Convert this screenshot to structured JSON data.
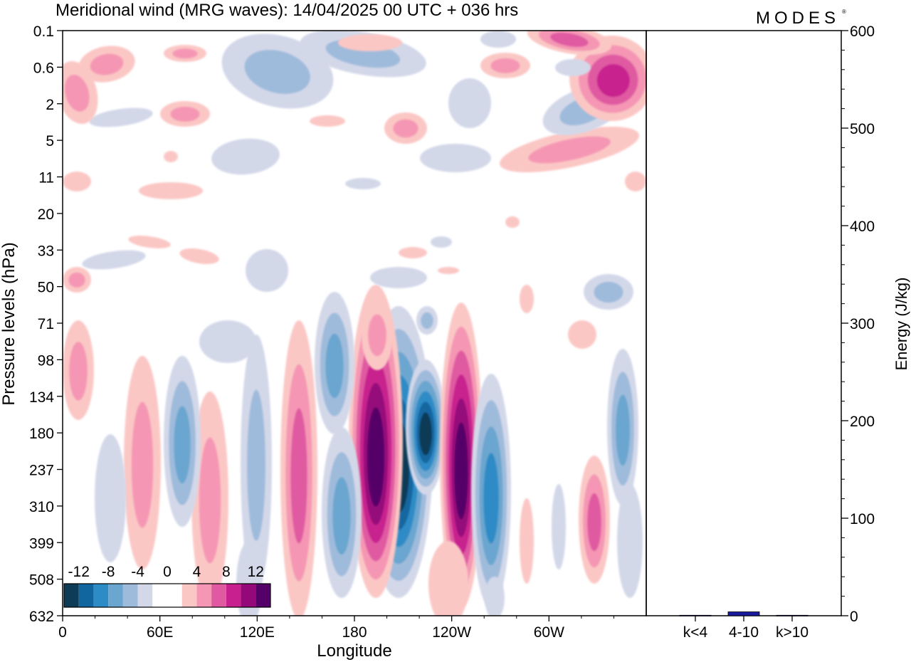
{
  "chart_data": {
    "type": "heatmap",
    "title": "Meridional wind (MRG waves):  14/04/2025  00 UTC  + 036 hrs",
    "brand": "MODES",
    "xlabel": "Longitude",
    "ylabel": "Pressure levels (hPa)",
    "x_ticks": [
      "0",
      "60E",
      "120E",
      "180",
      "120W",
      "60W"
    ],
    "y_ticks": [
      "0.1",
      "0.6",
      "2",
      "5",
      "11",
      "20",
      "33",
      "50",
      "71",
      "98",
      "134",
      "180",
      "237",
      "310",
      "399",
      "508",
      "632"
    ],
    "colorbar": {
      "labels": [
        "-12",
        "-8",
        "-4",
        "0",
        "4",
        "8",
        "12"
      ],
      "colors": [
        "#0e3b56",
        "#1266a0",
        "#2d8bc6",
        "#6aa6cf",
        "#9fbbdb",
        "#d3d8e9",
        "#ffffff",
        "#ffffff",
        "#fbc7c5",
        "#f597b4",
        "#e05aa2",
        "#c8208e",
        "#94087a",
        "#550068"
      ]
    },
    "energy_panel": {
      "ylabel": "Energy (J/kg)",
      "y_ticks": [
        "0",
        "100",
        "200",
        "300",
        "400",
        "500",
        "600"
      ],
      "ylim": [
        0,
        600
      ],
      "categories": [
        "k<4",
        "4-10",
        "k>10"
      ],
      "values": [
        0.5,
        4,
        0.5
      ],
      "bar_color": "#1a1a9c"
    }
  }
}
